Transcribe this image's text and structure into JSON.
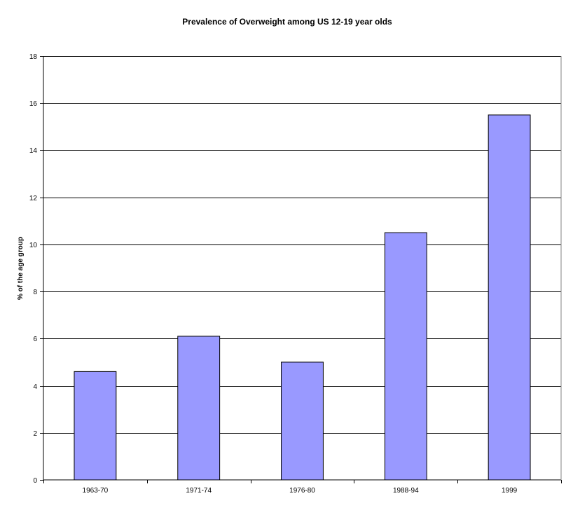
{
  "chart_data": {
    "type": "bar",
    "title": "Prevalence of Overweight among US 12-19 year olds",
    "xlabel": "",
    "ylabel": "% of the age group",
    "categories": [
      "1963-70",
      "1971-74",
      "1976-80",
      "1988-94",
      "1999"
    ],
    "values": [
      4.6,
      6.1,
      5.0,
      10.5,
      15.5
    ],
    "ylim": [
      0,
      18
    ],
    "yticks": [
      "0",
      "2",
      "4",
      "6",
      "8",
      "10",
      "12",
      "14",
      "16",
      "18"
    ],
    "grid": true,
    "legend": false,
    "bar_color": "#9999ff"
  }
}
